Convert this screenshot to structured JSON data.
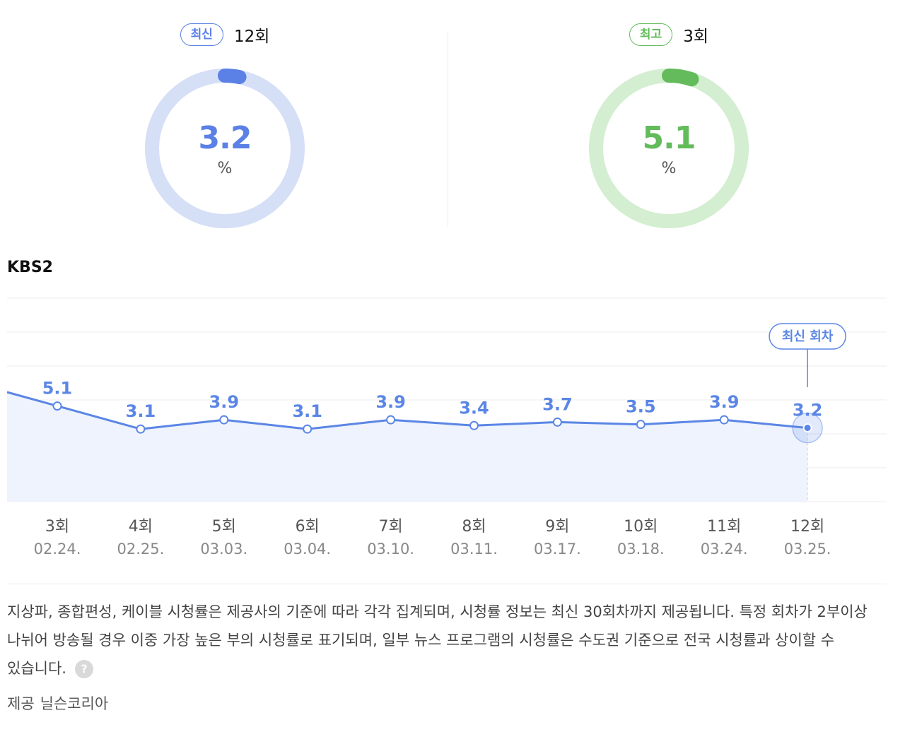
{
  "summary": {
    "latest": {
      "badge": "최신",
      "episode": "12회",
      "value": "3.2",
      "unit": "%",
      "fraction": 0.032,
      "color": "#5b80e6",
      "track_color": "#d5dff6"
    },
    "best": {
      "badge": "최고",
      "episode": "3회",
      "value": "5.1",
      "unit": "%",
      "fraction": 0.051,
      "color": "#63bb5b",
      "track_color": "#d3eed0"
    }
  },
  "chart_data": {
    "type": "area",
    "title": "KBS2",
    "categories": [
      "3회",
      "4회",
      "5회",
      "6회",
      "7회",
      "8회",
      "9회",
      "10회",
      "11회",
      "12회"
    ],
    "dates": [
      "02.24.",
      "02.25.",
      "03.03.",
      "03.04.",
      "03.10.",
      "03.11.",
      "03.17.",
      "03.18.",
      "03.24.",
      "03.25."
    ],
    "series": [
      {
        "values": [
          5.1,
          3.1,
          3.9,
          3.1,
          3.9,
          3.4,
          3.7,
          3.5,
          3.9,
          3.2
        ]
      }
    ],
    "latest_label": "최신 회차",
    "grid": true,
    "colors": {
      "line": "#5b86e5",
      "fill": "#eef3fd",
      "grid": "#ececec",
      "text": "#5b86e5",
      "tick": "#555555",
      "tick_date": "#888888"
    }
  },
  "notice": {
    "text": "지상파, 종합편성, 케이블 시청률은 제공사의 기준에 따라 각각 집계되며, 시청률 정보는 최신 30회차까지 제공됩니다. 특정 회차가 2부이상 나뉘어 방송될 경우 이중 가장 높은 부의 시청률로 표기되며, 일부 뉴스 프로그램의 시청률은 수도권 기준으로 전국 시청률과 상이할 수 있습니다.",
    "help_icon": "question-icon",
    "help_glyph": "?"
  },
  "source": {
    "label": "제공",
    "provider": "닐슨코리아"
  }
}
